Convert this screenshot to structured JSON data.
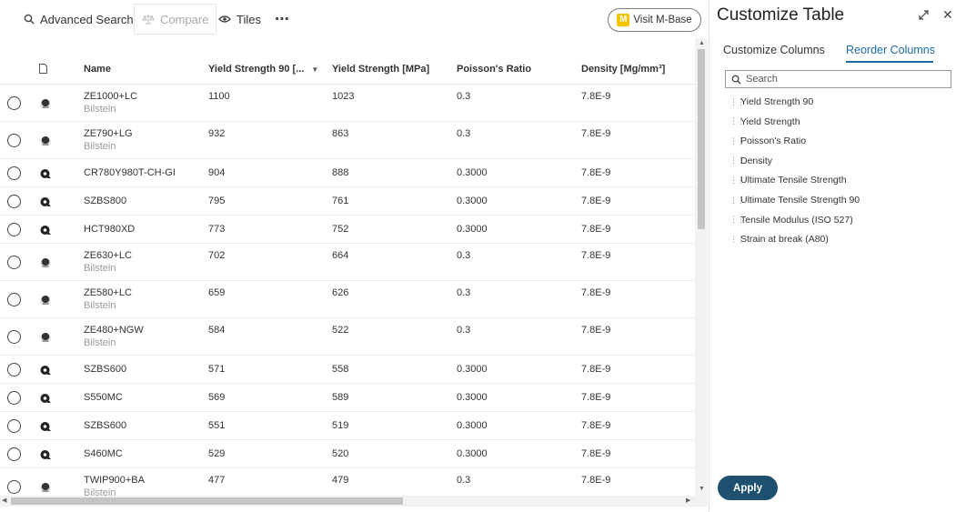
{
  "toolbar": {
    "advanced_search": "Advanced Search",
    "compare": "Compare",
    "tiles": "Tiles",
    "more": "⋯",
    "visit_badge": "M",
    "visit_label": "Visit M-Base"
  },
  "table": {
    "headers": {
      "name": "Name",
      "ys90": "Yield Strength 90 [...",
      "ys": "Yield Strength [MPa]",
      "poisson": "Poisson's Ratio",
      "density": "Density [Mg/mm³]"
    },
    "rows": [
      {
        "name": "ZE1000+LC",
        "sub": "Bilstein",
        "ys90": "1100",
        "ys": "1023",
        "poisson": "0.3",
        "density": "7.8E-9"
      },
      {
        "name": "ZE790+LG",
        "sub": "Bilstein",
        "ys90": "932",
        "ys": "863",
        "poisson": "0.3",
        "density": "7.8E-9"
      },
      {
        "name": "CR780Y980T-CH-GI",
        "sub": "",
        "ys90": "904",
        "ys": "888",
        "poisson": "0.3000",
        "density": "7.8E-9"
      },
      {
        "name": "SZBS800",
        "sub": "",
        "ys90": "795",
        "ys": "761",
        "poisson": "0.3000",
        "density": "7.8E-9"
      },
      {
        "name": "HCT980XD",
        "sub": "",
        "ys90": "773",
        "ys": "752",
        "poisson": "0.3000",
        "density": "7.8E-9"
      },
      {
        "name": "ZE630+LC",
        "sub": "Bilstein",
        "ys90": "702",
        "ys": "664",
        "poisson": "0.3",
        "density": "7.8E-9"
      },
      {
        "name": "ZE580+LC",
        "sub": "Bilstein",
        "ys90": "659",
        "ys": "626",
        "poisson": "0.3",
        "density": "7.8E-9"
      },
      {
        "name": "ZE480+NGW",
        "sub": "Bilstein",
        "ys90": "584",
        "ys": "522",
        "poisson": "0.3",
        "density": "7.8E-9"
      },
      {
        "name": "SZBS600",
        "sub": "",
        "ys90": "571",
        "ys": "558",
        "poisson": "0.3000",
        "density": "7.8E-9"
      },
      {
        "name": "S550MC",
        "sub": "",
        "ys90": "569",
        "ys": "589",
        "poisson": "0.3000",
        "density": "7.8E-9"
      },
      {
        "name": "SZBS600",
        "sub": "",
        "ys90": "551",
        "ys": "519",
        "poisson": "0.3000",
        "density": "7.8E-9"
      },
      {
        "name": "S460MC",
        "sub": "",
        "ys90": "529",
        "ys": "520",
        "poisson": "0.3000",
        "density": "7.8E-9"
      },
      {
        "name": "TWIP900+BA",
        "sub": "Bilstein",
        "ys90": "477",
        "ys": "479",
        "poisson": "0.3",
        "density": "7.8E-9"
      }
    ]
  },
  "panel": {
    "title": "Customize Table",
    "tabs": [
      "Customize Columns",
      "Reorder Columns"
    ],
    "active_tab": "Reorder Columns",
    "search_placeholder": "Search",
    "columns": [
      "Yield Strength 90",
      "Yield Strength",
      "Poisson's Ratio",
      "Density",
      "Ultimate Tensile Strength",
      "Ultimate Tensile Strength 90",
      "Tensile Modulus (ISO 527)",
      "Strain at break (A80)"
    ],
    "apply_label": "Apply"
  },
  "colors": {
    "accent": "#1b6aa6",
    "apply_bg": "#1e5170",
    "badge": "#f5c400"
  }
}
